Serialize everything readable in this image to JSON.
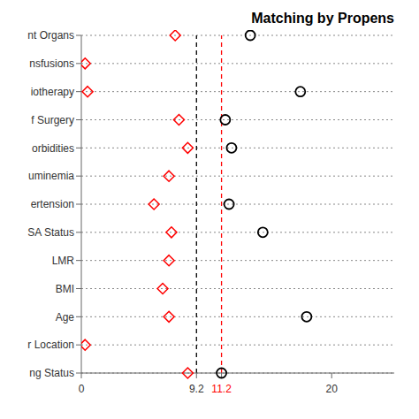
{
  "chart_data": {
    "type": "scatter",
    "title": "Matching by Propens",
    "orientation": "horizontal",
    "categories": [
      "nt Organs",
      "nsfusions",
      "iotherapy",
      "f Surgery",
      "orbidities",
      "uminemia",
      "ertension",
      "SA Status",
      "LMR",
      "BMI",
      "Age",
      "r Location",
      "ng Status"
    ],
    "series": [
      {
        "color": "#FF0000",
        "marker": "diamond",
        "values": [
          7.5,
          0.3,
          0.5,
          7.8,
          8.5,
          7.0,
          5.8,
          7.2,
          7.0,
          6.5,
          7.0,
          0.3,
          8.5
        ]
      },
      {
        "color": "#000000",
        "marker": "circle",
        "values": [
          13.5,
          null,
          17.5,
          11.5,
          12.0,
          null,
          11.8,
          14.5,
          null,
          null,
          18.0,
          null,
          11.2
        ]
      }
    ],
    "xlim": [
      0,
      25
    ],
    "xticks": [
      0,
      9.2,
      11.2,
      20
    ],
    "grid": true,
    "vlines": [
      {
        "value": 9.2,
        "color": "#000000",
        "line_style": "dashed"
      },
      {
        "value": 11.2,
        "color": "#FF0000",
        "line_style": "dashed"
      }
    ]
  }
}
